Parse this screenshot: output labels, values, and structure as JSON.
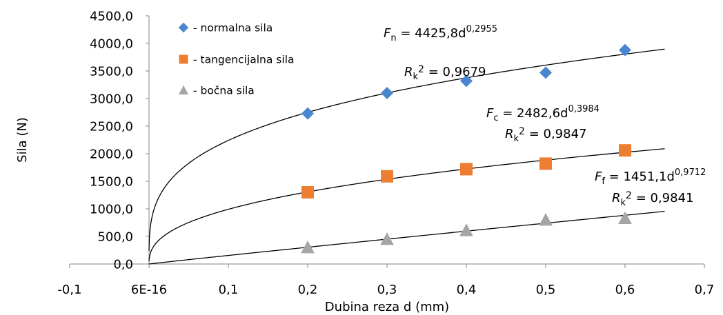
{
  "chart_data": {
    "type": "scatter",
    "title": "",
    "xlabel": "Dubina reza d (mm)",
    "ylabel": "Sila (N)",
    "xlim": [
      -0.1,
      0.7
    ],
    "ylim": [
      0,
      4500
    ],
    "x_ticks": [
      "-0,1",
      "6E-16",
      "0,1",
      "0,2",
      "0,3",
      "0,4",
      "0,5",
      "0,6",
      "0,7"
    ],
    "y_ticks": [
      "0,0",
      "500,0",
      "1000,0",
      "1500,0",
      "2000,0",
      "2500,0",
      "3000,0",
      "3500,0",
      "4000,0",
      "4500,0"
    ],
    "grid": false,
    "legend_position": "top-left",
    "series": [
      {
        "name": "- normalna sila",
        "marker": "diamond",
        "color": "#4a86cf",
        "x": [
          0.2,
          0.3,
          0.4,
          0.5,
          0.6
        ],
        "y": [
          2730,
          3100,
          3320,
          3470,
          3880
        ],
        "fit": {
          "a": 4425.8,
          "b": 0.2955,
          "var": "F",
          "sub": "n",
          "base": "4425,8d",
          "exp": "0,2955",
          "r2": "0,9679"
        }
      },
      {
        "name": "- tangencijalna sila",
        "marker": "square",
        "color": "#ed7d31",
        "x": [
          0.2,
          0.3,
          0.4,
          0.5,
          0.6
        ],
        "y": [
          1300,
          1590,
          1720,
          1820,
          2060
        ],
        "fit": {
          "a": 2482.6,
          "b": 0.3984,
          "var": "F",
          "sub": "c",
          "base": "2482,6d",
          "exp": "0,3984",
          "r2": "0,9847"
        }
      },
      {
        "name": "- bočna sila",
        "marker": "triangle",
        "color": "#a5a5a5",
        "x": [
          0.2,
          0.3,
          0.4,
          0.5,
          0.6
        ],
        "y": [
          300,
          450,
          610,
          800,
          830
        ],
        "fit": {
          "a": 1451.1,
          "b": 0.9712,
          "var": "F",
          "sub": "f",
          "base": "1451,1d",
          "exp": "0,9712",
          "r2": "0,9841"
        }
      }
    ]
  }
}
